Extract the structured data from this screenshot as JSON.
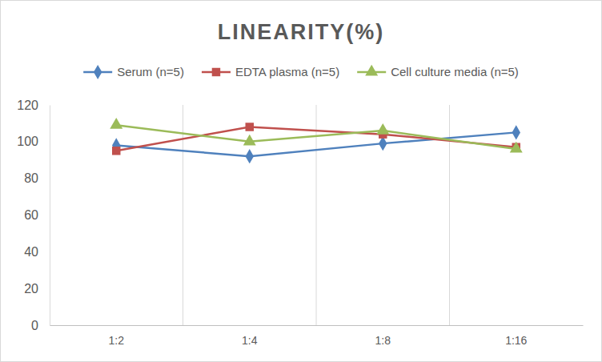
{
  "chart_data": {
    "type": "line",
    "title": "LINEARITY(%)",
    "categories": [
      "1:2",
      "1:4",
      "1:8",
      "1:16"
    ],
    "series": [
      {
        "name": "Serum (n=5)",
        "color": "#4f81bd",
        "marker": "diamond",
        "values": [
          98,
          92,
          99,
          105
        ]
      },
      {
        "name": "EDTA plasma (n=5)",
        "color": "#c0504d",
        "marker": "square",
        "values": [
          95,
          108,
          104,
          97
        ]
      },
      {
        "name": "Cell culture media (n=5)",
        "color": "#9bbb59",
        "marker": "triangle",
        "values": [
          109,
          100,
          106,
          96
        ]
      }
    ],
    "ylim": [
      0,
      120
    ],
    "yticks": [
      0,
      20,
      40,
      60,
      80,
      100,
      120
    ],
    "grid": true,
    "legend": "top"
  }
}
